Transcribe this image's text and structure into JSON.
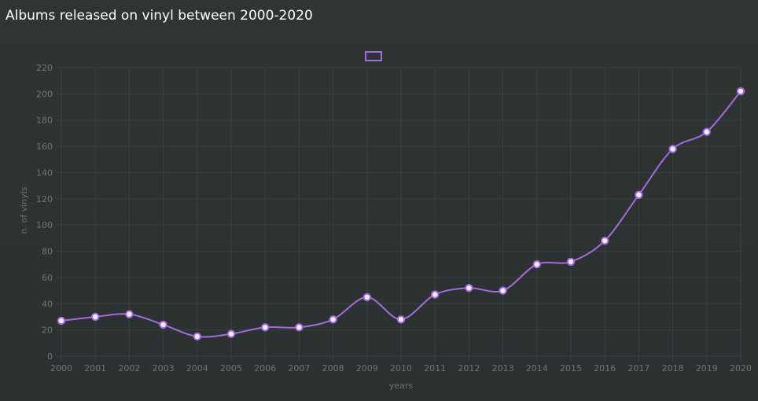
{
  "chart_data": {
    "type": "line",
    "title": "Albums released on vinyl between 2000-2020",
    "xlabel": "years",
    "ylabel": "n. of vinyls",
    "x": [
      "2000",
      "2001",
      "2002",
      "2003",
      "2004",
      "2005",
      "2006",
      "2007",
      "2008",
      "2009",
      "2010",
      "2011",
      "2012",
      "2013",
      "2014",
      "2015",
      "2016",
      "2017",
      "2018",
      "2019",
      "2020"
    ],
    "series": [
      {
        "values": [
          27,
          30,
          32,
          24,
          15,
          17,
          22,
          22,
          28,
          45,
          28,
          47,
          52,
          50,
          70,
          72,
          88,
          123,
          158,
          171,
          202
        ],
        "color": "#a56bdd"
      }
    ],
    "ylim": [
      0,
      220
    ],
    "ytick_step": 20,
    "grid": true,
    "legend": "top-center",
    "curve": "smooth"
  },
  "colors": {
    "background": "#2d3233",
    "grid": "#3b4142",
    "line": "#a56bdd",
    "point_fill": "#f2ecff",
    "text": "#6f7677",
    "title": "#ffffff"
  }
}
